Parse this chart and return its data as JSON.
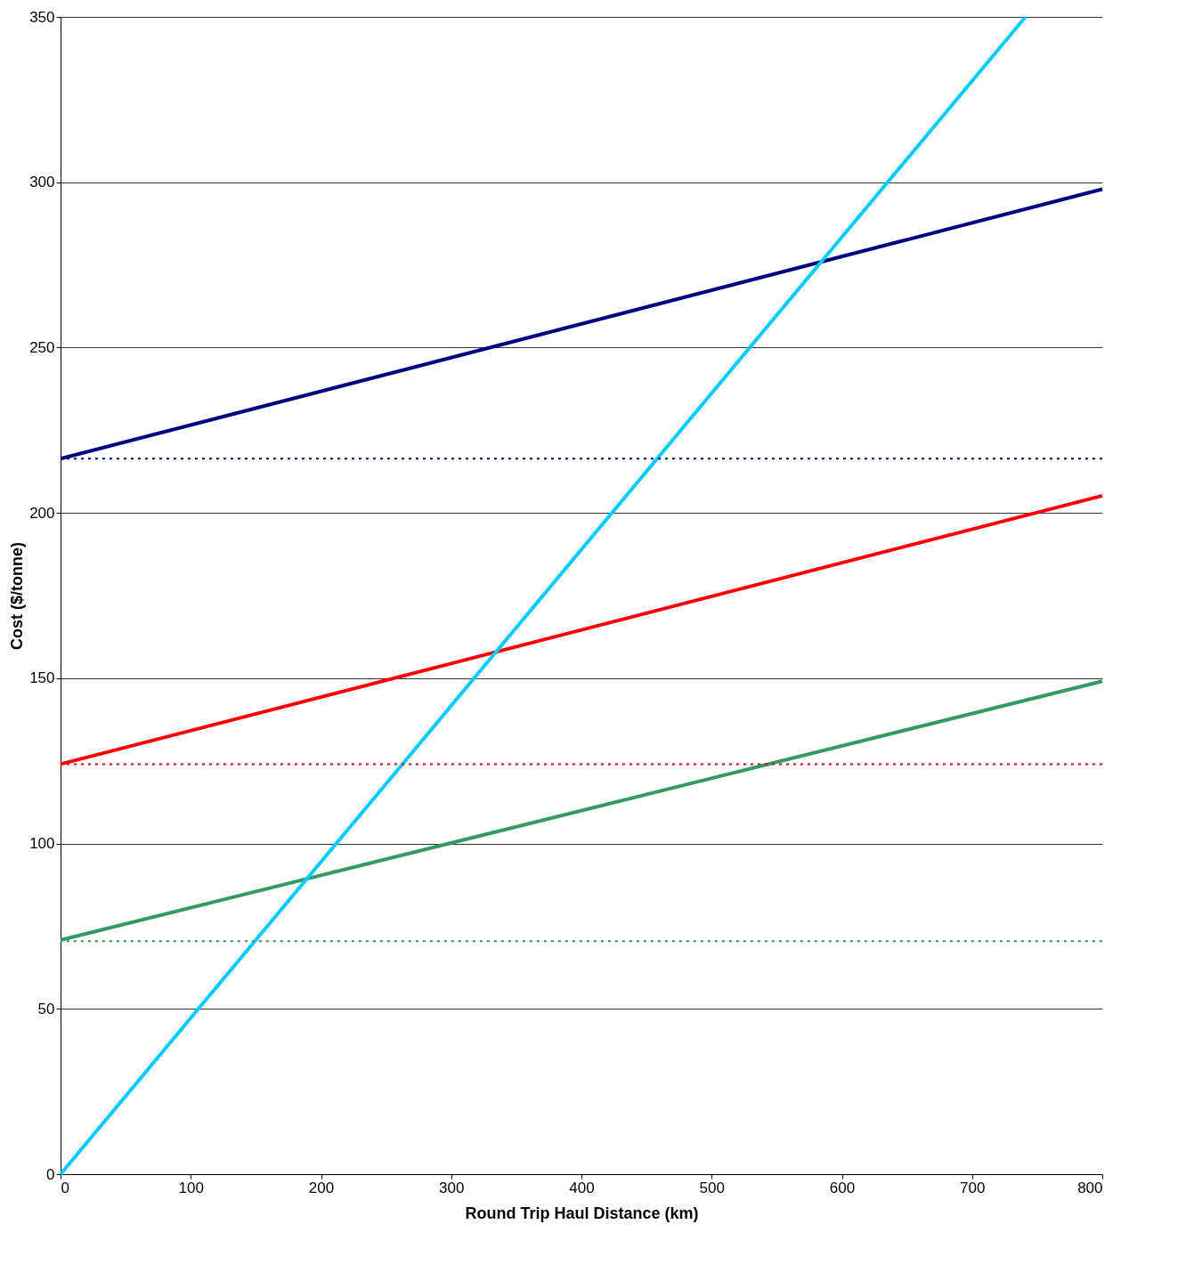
{
  "chart_data": {
    "type": "line",
    "xlabel": "Round Trip Haul Distance (km)",
    "ylabel": "Cost ($/tonne)",
    "series": [
      {
        "color": "#000080",
        "x": [
          0,
          800
        ],
        "values": [
          216.4,
          297.9
        ]
      },
      {
        "color": "#ff0000",
        "x": [
          0,
          800
        ],
        "values": [
          124,
          205.2
        ]
      },
      {
        "color": "#339966",
        "x": [
          0,
          800
        ],
        "values": [
          70.8,
          149.1
        ]
      },
      {
        "color": "#00ccff",
        "x": [
          0,
          741
        ],
        "values": [
          0,
          350
        ]
      }
    ],
    "xlim": [
      0,
      800
    ],
    "xticks": [
      0,
      100,
      200,
      300,
      400,
      500,
      600,
      700,
      800
    ],
    "ylim": [
      0,
      350
    ],
    "yticks": [
      0,
      50,
      100,
      150,
      200,
      250,
      300,
      350
    ],
    "grid": "y",
    "line_style": "solid",
    "marker": "none",
    "ref_lines": [
      {
        "axis": "y",
        "value": 216.4,
        "color": "#000080",
        "line_style": "dotted"
      },
      {
        "axis": "y",
        "value": 124,
        "color": "#ff0000",
        "line_style": "dotted"
      },
      {
        "axis": "y",
        "value": 70.5,
        "color": "#339966",
        "line_style": "dotted"
      }
    ]
  }
}
